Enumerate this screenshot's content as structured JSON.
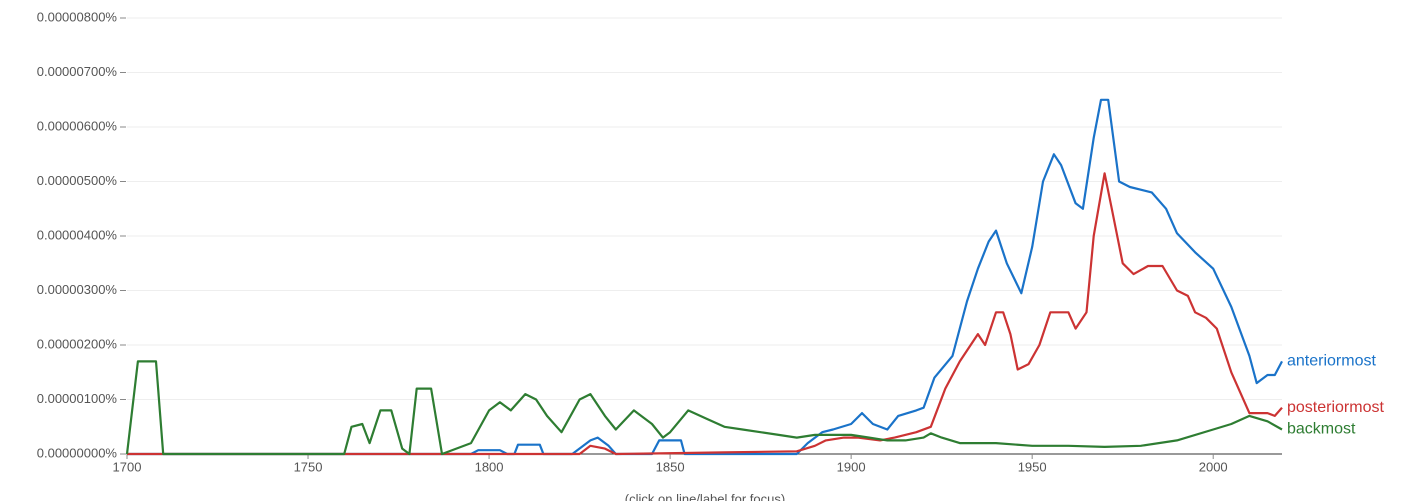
{
  "chart_data": {
    "type": "line",
    "note_text": "(click on line/label for focus)",
    "xlim": [
      1700,
      2019
    ],
    "xticks": [
      1700,
      1750,
      1800,
      1850,
      1900,
      1950,
      2000
    ],
    "ylim": [
      0,
      8e-06
    ],
    "yticks": [
      {
        "value": 0,
        "label": "0.00000000%"
      },
      {
        "value": 1e-06,
        "label": "0.00000100%"
      },
      {
        "value": 2e-06,
        "label": "0.00000200%"
      },
      {
        "value": 3e-06,
        "label": "0.00000300%"
      },
      {
        "value": 4e-06,
        "label": "0.00000400%"
      },
      {
        "value": 5e-06,
        "label": "0.00000500%"
      },
      {
        "value": 6e-06,
        "label": "0.00000600%"
      },
      {
        "value": 7e-06,
        "label": "0.00000700%"
      },
      {
        "value": 8e-06,
        "label": "0.00000800%"
      }
    ],
    "grid": true,
    "series": [
      {
        "name": "anteriormost",
        "color": "#1a73c9",
        "x": [
          1700,
          1795,
          1797,
          1803,
          1805,
          1807,
          1808,
          1814,
          1815,
          1823,
          1828,
          1830,
          1833,
          1835,
          1845,
          1847,
          1853,
          1854,
          1885,
          1888,
          1892,
          1895,
          1900,
          1903,
          1906,
          1910,
          1913,
          1918,
          1920,
          1923,
          1928,
          1932,
          1935,
          1938,
          1940,
          1943,
          1947,
          1950,
          1953,
          1956,
          1958,
          1962,
          1964,
          1967,
          1969,
          1971,
          1974,
          1977,
          1983,
          1987,
          1990,
          1995,
          2000,
          2005,
          2010,
          2012,
          2015,
          2017,
          2019
        ],
        "values": [
          0,
          0,
          7e-08,
          7e-08,
          0,
          0,
          1.7e-07,
          1.7e-07,
          0,
          0,
          2.5e-07,
          3e-07,
          1.5e-07,
          0,
          0,
          2.5e-07,
          2.5e-07,
          0,
          0,
          2e-07,
          4e-07,
          4.5e-07,
          5.5e-07,
          7.5e-07,
          5.5e-07,
          4.5e-07,
          7e-07,
          8e-07,
          8.5e-07,
          1.4e-06,
          1.8e-06,
          2.8e-06,
          3.4e-06,
          3.9e-06,
          4.1e-06,
          3.5e-06,
          2.95e-06,
          3.8e-06,
          5e-06,
          5.5e-06,
          5.3e-06,
          4.6e-06,
          4.5e-06,
          5.8e-06,
          6.5e-06,
          6.5e-06,
          5e-06,
          4.9e-06,
          4.8e-06,
          4.5e-06,
          4.05e-06,
          3.7e-06,
          3.4e-06,
          2.7e-06,
          1.8e-06,
          1.3e-06,
          1.45e-06,
          1.45e-06,
          1.7e-06
        ]
      },
      {
        "name": "posteriormost",
        "color": "#cc3333",
        "x": [
          1700,
          1825,
          1828,
          1832,
          1835,
          1865,
          1885,
          1890,
          1893,
          1898,
          1902,
          1908,
          1912,
          1918,
          1922,
          1926,
          1930,
          1935,
          1937,
          1940,
          1942,
          1944,
          1946,
          1949,
          1952,
          1955,
          1958,
          1960,
          1962,
          1965,
          1967,
          1970,
          1972,
          1975,
          1978,
          1982,
          1986,
          1990,
          1993,
          1995,
          1998,
          2001,
          2005,
          2010,
          2015,
          2017,
          2019
        ],
        "values": [
          0,
          0,
          1.5e-07,
          1e-07,
          0,
          3e-08,
          5e-08,
          1.5e-07,
          2.5e-07,
          3e-07,
          3e-07,
          2.5e-07,
          3e-07,
          4e-07,
          5e-07,
          1.2e-06,
          1.7e-06,
          2.2e-06,
          2e-06,
          2.6e-06,
          2.6e-06,
          2.2e-06,
          1.55e-06,
          1.65e-06,
          2e-06,
          2.6e-06,
          2.6e-06,
          2.6e-06,
          2.3e-06,
          2.6e-06,
          4e-06,
          5.15e-06,
          4.5e-06,
          3.5e-06,
          3.3e-06,
          3.45e-06,
          3.45e-06,
          3e-06,
          2.9e-06,
          2.6e-06,
          2.5e-06,
          2.3e-06,
          1.5e-06,
          7.5e-07,
          7.5e-07,
          7e-07,
          8.5e-07
        ]
      },
      {
        "name": "backmost",
        "color": "#2e7d32",
        "x": [
          1700,
          1703,
          1708,
          1710,
          1760,
          1762,
          1765,
          1767,
          1770,
          1773,
          1776,
          1778,
          1780,
          1784,
          1787,
          1795,
          1800,
          1803,
          1806,
          1810,
          1813,
          1816,
          1820,
          1825,
          1828,
          1832,
          1835,
          1840,
          1845,
          1848,
          1850,
          1855,
          1860,
          1865,
          1870,
          1875,
          1880,
          1885,
          1890,
          1895,
          1900,
          1905,
          1910,
          1915,
          1920,
          1922,
          1925,
          1930,
          1940,
          1950,
          1960,
          1970,
          1980,
          1990,
          2000,
          2005,
          2010,
          2015,
          2019
        ],
        "values": [
          0,
          1.7e-06,
          1.7e-06,
          0,
          0,
          5e-07,
          5.5e-07,
          2e-07,
          8e-07,
          8e-07,
          1e-07,
          0,
          1.2e-06,
          1.2e-06,
          0,
          2e-07,
          8e-07,
          9.5e-07,
          8e-07,
          1.1e-06,
          1e-06,
          7e-07,
          4e-07,
          1e-06,
          1.1e-06,
          7e-07,
          4.5e-07,
          8e-07,
          5.5e-07,
          3e-07,
          4e-07,
          8e-07,
          6.5e-07,
          5e-07,
          4.5e-07,
          4e-07,
          3.5e-07,
          3e-07,
          3.5e-07,
          3.5e-07,
          3.5e-07,
          3e-07,
          2.5e-07,
          2.5e-07,
          3e-07,
          3.8e-07,
          3e-07,
          2e-07,
          2e-07,
          1.5e-07,
          1.5e-07,
          1.3e-07,
          1.5e-07,
          2.5e-07,
          4.5e-07,
          5.5e-07,
          7e-07,
          6e-07,
          4.5e-07
        ]
      }
    ]
  }
}
